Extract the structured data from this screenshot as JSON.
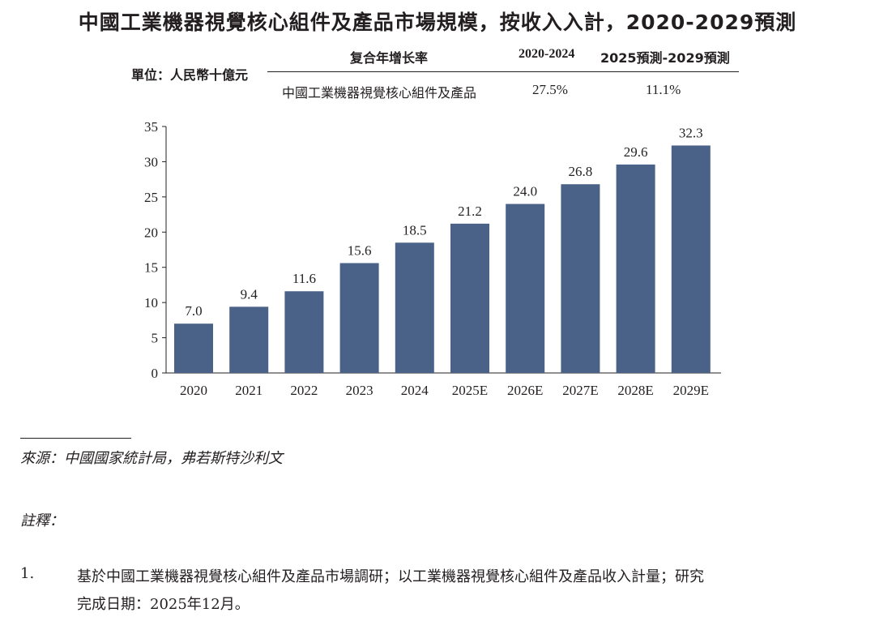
{
  "title": "中國工業機器視覺核心組件及產品市場規模，按收入入計，2020-2029預測",
  "unit_label": "單位：人民幣十億元",
  "cagr_table": {
    "header_label": "复合年增长率",
    "col1": "2020-2024",
    "col2": "2025預測-2029預測",
    "row_label": "中國工業機器視覺核心組件及產品",
    "row_val1": "27.5%",
    "row_val2": "11.1%"
  },
  "chart_data": {
    "type": "bar",
    "categories": [
      "2020",
      "2021",
      "2022",
      "2023",
      "2024",
      "2025E",
      "2026E",
      "2027E",
      "2028E",
      "2029E"
    ],
    "values": [
      7.0,
      9.4,
      11.6,
      15.6,
      18.5,
      21.2,
      24.0,
      26.8,
      29.6,
      32.3
    ],
    "value_labels": [
      "7.0",
      "9.4",
      "11.6",
      "15.6",
      "18.5",
      "21.2",
      "24.0",
      "26.8",
      "29.6",
      "32.3"
    ],
    "yticks": [
      "0",
      "5",
      "10",
      "15",
      "20",
      "25",
      "30",
      "35"
    ],
    "ylim": [
      0,
      35
    ],
    "bar_color": "#4a6188",
    "xlabel": "",
    "ylabel": ""
  },
  "source": "來源：中國國家統計局，弗若斯特沙利文",
  "notes_label": "註釋：",
  "notes": [
    {
      "num": "1.",
      "line1": "基於中國工業機器視覺核心組件及產品市場調研；以工業機器視覺核心組件及產品收入計量；研究",
      "line2": "完成日期：2025年12月。"
    }
  ]
}
